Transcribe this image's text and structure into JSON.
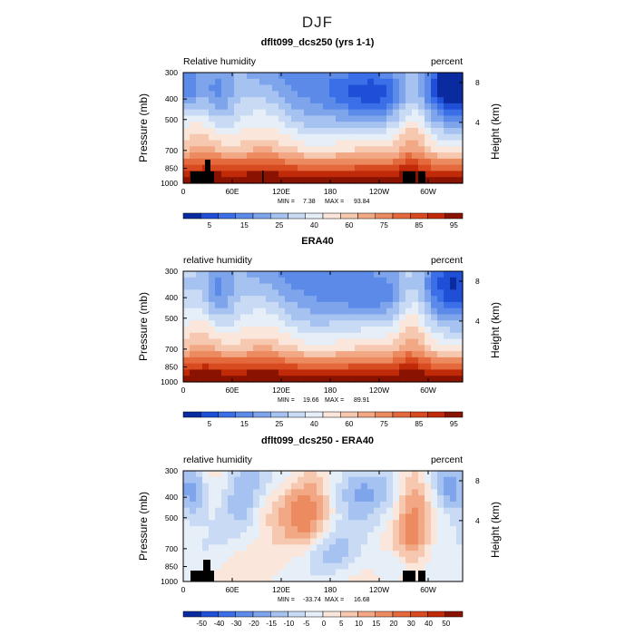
{
  "figure": {
    "title": "DJF",
    "shared_scale": {
      "colors": [
        "#0a2aa0",
        "#1f4fd6",
        "#3a6fe8",
        "#5b8ae8",
        "#7ea4ec",
        "#a6c2f0",
        "#c8daf4",
        "#e6eef8",
        "#fae6da",
        "#f6c8b0",
        "#f2a884",
        "#ec8a60",
        "#e46a3e",
        "#d84a20",
        "#c02a08",
        "#8a1200"
      ]
    }
  },
  "chart_data": [
    {
      "type": "heatmap",
      "title": "dflt099_dcs250 (yrs 1-1)",
      "variable_label": "Relative humidity",
      "units_label": "percent",
      "ylabel": "Pressure (mb)",
      "y2label": "Height (km)",
      "x_ticks": [
        "0",
        "60E",
        "120E",
        "180",
        "120W",
        "60W"
      ],
      "y_ticks": [
        "300",
        "400",
        "500",
        "700",
        "850",
        "1000"
      ],
      "y2_ticks": [
        "8",
        "4"
      ],
      "min_label": "MIN =",
      "min_value": "7.38",
      "max_label": "MAX =",
      "max_value": "93.84",
      "colorbar_levels": [
        "5",
        "15",
        "25",
        "40",
        "60",
        "75",
        "85",
        "95"
      ],
      "colorbar_bins": 16
    },
    {
      "type": "heatmap",
      "title": "ERA40",
      "variable_label": "relative humidity",
      "units_label": "percent",
      "ylabel": "Pressure (mb)",
      "y2label": "Height (km)",
      "x_ticks": [
        "0",
        "60E",
        "120E",
        "180",
        "120W",
        "60W"
      ],
      "y_ticks": [
        "300",
        "400",
        "500",
        "700",
        "850",
        "1000"
      ],
      "y2_ticks": [
        "8",
        "4"
      ],
      "min_label": "MIN =",
      "min_value": "19.66",
      "max_label": "MAX =",
      "max_value": "89.91",
      "colorbar_levels": [
        "5",
        "15",
        "25",
        "40",
        "60",
        "75",
        "85",
        "95"
      ],
      "colorbar_bins": 16
    },
    {
      "type": "heatmap",
      "title": "dflt099_dcs250 - ERA40",
      "variable_label": "relative humidity",
      "units_label": "percent",
      "ylabel": "Pressure (mb)",
      "y2label": "Height (km)",
      "x_ticks": [
        "0",
        "60E",
        "120E",
        "180",
        "120W",
        "60W"
      ],
      "y_ticks": [
        "300",
        "400",
        "500",
        "700",
        "850",
        "1000"
      ],
      "y2_ticks": [
        "8",
        "4"
      ],
      "min_label": "MIN =",
      "min_value": "-33.74",
      "max_label": "MAX =",
      "max_value": "16.68",
      "colorbar_levels": [
        "-50",
        "-40",
        "-30",
        "-20",
        "-15",
        "-10",
        "-5",
        "0",
        "5",
        "10",
        "15",
        "20",
        "30",
        "40",
        "50"
      ],
      "colorbar_bins": 16
    }
  ]
}
